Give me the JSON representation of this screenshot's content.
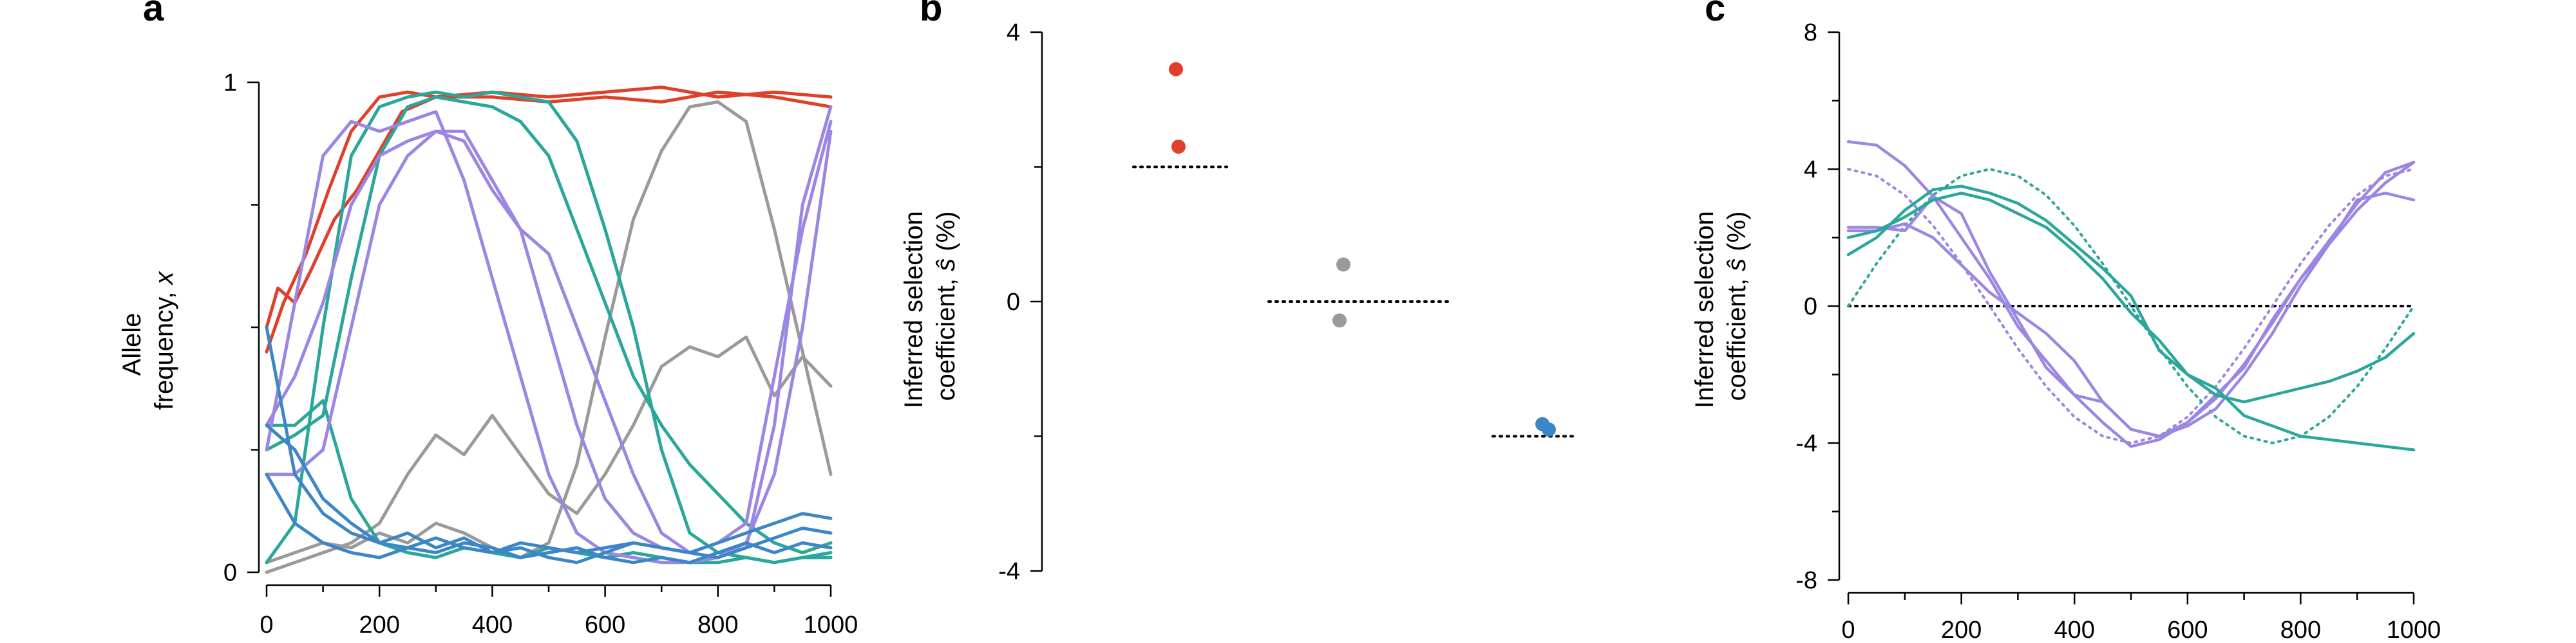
{
  "colors": {
    "red": "#e0402a",
    "grey": "#9a9a9a",
    "teal": "#2aa79a",
    "purple": "#9b86e3",
    "blue": "#3d86c6",
    "black": "#000000"
  },
  "chart_data": [
    {
      "panel": "a",
      "type": "line",
      "title": "",
      "ylabel_line1": "Allele",
      "ylabel_line2": "frequency, ",
      "ylabel_var": "x",
      "xlim": [
        0,
        1000
      ],
      "ylim": [
        0,
        1
      ],
      "xticks": [
        0,
        200,
        400,
        600,
        800,
        1000
      ],
      "yticks": [
        0,
        1
      ],
      "series": [
        {
          "color": "red",
          "x": [
            0,
            20,
            50,
            80,
            120,
            160,
            200,
            240,
            300,
            400,
            500,
            600,
            700,
            800,
            900,
            1000
          ],
          "y": [
            0.5,
            0.58,
            0.55,
            0.62,
            0.72,
            0.78,
            0.86,
            0.94,
            0.97,
            0.97,
            0.96,
            0.97,
            0.96,
            0.98,
            0.97,
            0.95
          ]
        },
        {
          "color": "red",
          "x": [
            0,
            30,
            70,
            110,
            150,
            200,
            250,
            300,
            400,
            500,
            600,
            700,
            800,
            900,
            1000
          ],
          "y": [
            0.45,
            0.55,
            0.65,
            0.78,
            0.9,
            0.97,
            0.98,
            0.97,
            0.98,
            0.97,
            0.98,
            0.99,
            0.97,
            0.98,
            0.97
          ]
        },
        {
          "color": "grey",
          "x": [
            0,
            50,
            100,
            150,
            200,
            250,
            300,
            350,
            400,
            450,
            500,
            550,
            600,
            650,
            700,
            750,
            800,
            850,
            900,
            950,
            1000
          ],
          "y": [
            0.02,
            0.04,
            0.06,
            0.05,
            0.08,
            0.06,
            0.1,
            0.08,
            0.05,
            0.03,
            0.06,
            0.22,
            0.48,
            0.72,
            0.86,
            0.95,
            0.96,
            0.92,
            0.7,
            0.45,
            0.2
          ]
        },
        {
          "color": "grey",
          "x": [
            0,
            50,
            100,
            150,
            200,
            250,
            300,
            350,
            400,
            450,
            500,
            550,
            600,
            650,
            700,
            750,
            800,
            850,
            900,
            950,
            1000
          ],
          "y": [
            0.0,
            0.02,
            0.04,
            0.06,
            0.1,
            0.2,
            0.28,
            0.24,
            0.32,
            0.24,
            0.16,
            0.12,
            0.2,
            0.3,
            0.42,
            0.46,
            0.44,
            0.48,
            0.36,
            0.44,
            0.38
          ]
        },
        {
          "color": "teal",
          "x": [
            0,
            50,
            100,
            150,
            200,
            250,
            300,
            350,
            400,
            450,
            500,
            550,
            600,
            650,
            700,
            750,
            800,
            850,
            900,
            950,
            1000
          ],
          "y": [
            0.02,
            0.1,
            0.5,
            0.85,
            0.95,
            0.97,
            0.98,
            0.97,
            0.98,
            0.97,
            0.96,
            0.88,
            0.7,
            0.5,
            0.25,
            0.08,
            0.04,
            0.03,
            0.02,
            0.03,
            0.04
          ]
        },
        {
          "color": "teal",
          "x": [
            0,
            50,
            100,
            150,
            200,
            250,
            300,
            350,
            400,
            450,
            500,
            550,
            600,
            650,
            700,
            750,
            800,
            850,
            900,
            950,
            1000
          ],
          "y": [
            0.25,
            0.28,
            0.32,
            0.6,
            0.85,
            0.95,
            0.97,
            0.96,
            0.95,
            0.92,
            0.85,
            0.7,
            0.55,
            0.4,
            0.3,
            0.22,
            0.16,
            0.1,
            0.06,
            0.04,
            0.06
          ]
        },
        {
          "color": "teal",
          "x": [
            0,
            50,
            100,
            150,
            200,
            250,
            300,
            350,
            400,
            450,
            500,
            550,
            600,
            650,
            700,
            750,
            800,
            850,
            900,
            950,
            1000
          ],
          "y": [
            0.3,
            0.3,
            0.35,
            0.15,
            0.06,
            0.04,
            0.03,
            0.05,
            0.04,
            0.03,
            0.05,
            0.04,
            0.03,
            0.04,
            0.03,
            0.02,
            0.02,
            0.03,
            0.02,
            0.03,
            0.03
          ]
        },
        {
          "color": "purple",
          "x": [
            0,
            50,
            100,
            150,
            200,
            250,
            300,
            350,
            400,
            450,
            500,
            550,
            600,
            650,
            700,
            750,
            800,
            850,
            900,
            950,
            1000
          ],
          "y": [
            0.25,
            0.55,
            0.85,
            0.92,
            0.9,
            0.92,
            0.94,
            0.8,
            0.6,
            0.4,
            0.2,
            0.08,
            0.04,
            0.03,
            0.02,
            0.02,
            0.03,
            0.05,
            0.3,
            0.75,
            0.95
          ]
        },
        {
          "color": "purple",
          "x": [
            0,
            50,
            100,
            150,
            200,
            250,
            300,
            350,
            400,
            450,
            500,
            550,
            600,
            650,
            700,
            750,
            800,
            850,
            900,
            950,
            1000
          ],
          "y": [
            0.3,
            0.4,
            0.55,
            0.75,
            0.85,
            0.88,
            0.9,
            0.9,
            0.8,
            0.7,
            0.5,
            0.3,
            0.15,
            0.08,
            0.05,
            0.04,
            0.06,
            0.1,
            0.4,
            0.7,
            0.92
          ]
        },
        {
          "color": "purple",
          "x": [
            0,
            50,
            100,
            150,
            200,
            250,
            300,
            350,
            400,
            450,
            500,
            550,
            600,
            650,
            700,
            750,
            800,
            850,
            900,
            950,
            1000
          ],
          "y": [
            0.2,
            0.2,
            0.25,
            0.5,
            0.75,
            0.85,
            0.9,
            0.88,
            0.78,
            0.7,
            0.65,
            0.5,
            0.35,
            0.2,
            0.08,
            0.04,
            0.03,
            0.06,
            0.2,
            0.5,
            0.9
          ]
        },
        {
          "color": "blue",
          "x": [
            0,
            50,
            100,
            150,
            200,
            250,
            300,
            350,
            400,
            450,
            500,
            550,
            600,
            650,
            700,
            750,
            800,
            850,
            900,
            950,
            1000
          ],
          "y": [
            0.5,
            0.2,
            0.12,
            0.08,
            0.06,
            0.05,
            0.07,
            0.05,
            0.04,
            0.06,
            0.05,
            0.04,
            0.05,
            0.06,
            0.05,
            0.04,
            0.06,
            0.08,
            0.1,
            0.12,
            0.11
          ]
        },
        {
          "color": "blue",
          "x": [
            0,
            50,
            100,
            150,
            200,
            250,
            300,
            350,
            400,
            450,
            500,
            550,
            600,
            650,
            700,
            750,
            800,
            850,
            900,
            950,
            1000
          ],
          "y": [
            0.3,
            0.25,
            0.15,
            0.1,
            0.06,
            0.08,
            0.05,
            0.07,
            0.04,
            0.05,
            0.03,
            0.02,
            0.04,
            0.06,
            0.05,
            0.04,
            0.03,
            0.05,
            0.07,
            0.09,
            0.08
          ]
        },
        {
          "color": "blue",
          "x": [
            0,
            50,
            100,
            150,
            200,
            250,
            300,
            350,
            400,
            450,
            500,
            550,
            600,
            650,
            700,
            750,
            800,
            850,
            900,
            950,
            1000
          ],
          "y": [
            0.2,
            0.1,
            0.06,
            0.04,
            0.03,
            0.05,
            0.04,
            0.06,
            0.05,
            0.03,
            0.04,
            0.05,
            0.03,
            0.02,
            0.03,
            0.02,
            0.04,
            0.06,
            0.04,
            0.06,
            0.05
          ]
        }
      ]
    },
    {
      "panel": "b",
      "type": "scatter",
      "title": "",
      "ylabel_line1": "Inferred selection",
      "ylabel_line2": "coefficient, ",
      "ylabel_var": "ŝ",
      "ylabel_suffix": " (%)",
      "ylim": [
        -4,
        4
      ],
      "yticks": [
        -4,
        0,
        4
      ],
      "groups": [
        {
          "color": "red",
          "true_s": 2,
          "points": [
            3.45,
            2.3
          ]
        },
        {
          "color": "grey",
          "true_s": 0,
          "points": [
            0.55,
            -0.28
          ]
        },
        {
          "color": "blue",
          "true_s": -2,
          "points": [
            -1.82,
            -1.9
          ]
        }
      ]
    },
    {
      "panel": "c",
      "type": "line",
      "title": "",
      "ylabel_line1": "Inferred selection",
      "ylabel_line2": "coefficient, ",
      "ylabel_var": "ŝ",
      "ylabel_suffix": " (%)",
      "xlim": [
        0,
        1000
      ],
      "ylim": [
        -8,
        8
      ],
      "xticks": [
        0,
        200,
        400,
        600,
        800,
        1000
      ],
      "yticks": [
        -8,
        -4,
        0,
        4,
        8
      ],
      "zero_line": true,
      "true_curves": [
        {
          "color": "purple",
          "x": [
            0,
            50,
            100,
            150,
            200,
            250,
            300,
            350,
            400,
            450,
            500,
            550,
            600,
            650,
            700,
            750,
            800,
            850,
            900,
            950,
            1000
          ],
          "y": [
            4.0,
            3.8,
            3.24,
            2.35,
            1.24,
            0.0,
            -1.24,
            -2.35,
            -3.24,
            -3.8,
            -4.0,
            -3.8,
            -3.24,
            -2.35,
            -1.24,
            0.0,
            1.24,
            2.35,
            3.24,
            3.8,
            4.0
          ]
        },
        {
          "color": "teal",
          "x": [
            0,
            50,
            100,
            150,
            200,
            250,
            300,
            350,
            400,
            450,
            500,
            550,
            600,
            650,
            700,
            750,
            800,
            850,
            900,
            950,
            1000
          ],
          "y": [
            0.0,
            1.24,
            2.35,
            3.24,
            3.8,
            4.0,
            3.8,
            3.24,
            2.35,
            1.24,
            0.0,
            -1.24,
            -2.35,
            -3.24,
            -3.8,
            -4.0,
            -3.8,
            -3.24,
            -2.35,
            -1.24,
            0.0
          ]
        }
      ],
      "series": [
        {
          "color": "purple",
          "x": [
            0,
            50,
            100,
            150,
            200,
            250,
            300,
            350,
            400,
            450,
            500,
            550,
            600,
            650,
            700,
            750,
            800,
            850,
            900,
            950,
            1000
          ],
          "y": [
            4.8,
            4.7,
            4.1,
            3.2,
            2.0,
            0.8,
            -0.6,
            -1.6,
            -2.6,
            -3.4,
            -4.1,
            -3.9,
            -3.4,
            -2.7,
            -1.7,
            -0.5,
            0.8,
            1.9,
            3.0,
            3.9,
            4.2
          ]
        },
        {
          "color": "purple",
          "x": [
            0,
            50,
            100,
            150,
            200,
            250,
            300,
            350,
            400,
            450,
            500,
            550,
            600,
            650,
            700,
            750,
            800,
            850,
            900,
            950,
            1000
          ],
          "y": [
            2.3,
            2.3,
            2.2,
            3.2,
            2.7,
            1.0,
            -0.4,
            -1.8,
            -2.6,
            -2.8,
            -3.6,
            -3.8,
            -3.5,
            -3.0,
            -2.0,
            -0.8,
            0.6,
            1.8,
            3.1,
            3.3,
            3.1
          ]
        },
        {
          "color": "purple",
          "x": [
            0,
            50,
            100,
            150,
            200,
            250,
            300,
            350,
            400,
            450,
            500,
            550,
            600,
            650,
            700,
            750,
            800,
            850,
            900,
            950,
            1000
          ],
          "y": [
            2.2,
            2.2,
            2.4,
            2.0,
            1.2,
            0.4,
            -0.2,
            -0.8,
            -1.6,
            -2.8,
            -3.6,
            -3.8,
            -3.4,
            -2.6,
            -1.8,
            -0.4,
            0.8,
            1.8,
            2.8,
            3.6,
            4.2
          ]
        },
        {
          "color": "teal",
          "x": [
            0,
            50,
            100,
            150,
            200,
            250,
            300,
            350,
            400,
            450,
            500,
            550,
            600,
            650,
            700,
            750,
            800,
            850,
            900,
            950,
            1000
          ],
          "y": [
            1.5,
            2.0,
            2.8,
            3.4,
            3.5,
            3.3,
            3.0,
            2.5,
            1.8,
            1.1,
            0.3,
            -1.3,
            -2.0,
            -2.6,
            -2.8,
            -2.6,
            -2.4,
            -2.2,
            -1.9,
            -1.5,
            -0.8
          ]
        },
        {
          "color": "teal",
          "x": [
            0,
            50,
            100,
            150,
            200,
            250,
            300,
            350,
            400,
            450,
            500,
            550,
            600,
            650,
            700,
            750,
            800,
            850,
            900,
            950,
            1000
          ],
          "y": [
            2.0,
            2.2,
            2.6,
            3.1,
            3.3,
            3.1,
            2.7,
            2.3,
            1.6,
            0.8,
            -0.2,
            -1.0,
            -2.0,
            -2.4,
            -3.2,
            -3.5,
            -3.8,
            -3.9,
            -4.0,
            -4.1,
            -4.2
          ]
        }
      ]
    }
  ]
}
